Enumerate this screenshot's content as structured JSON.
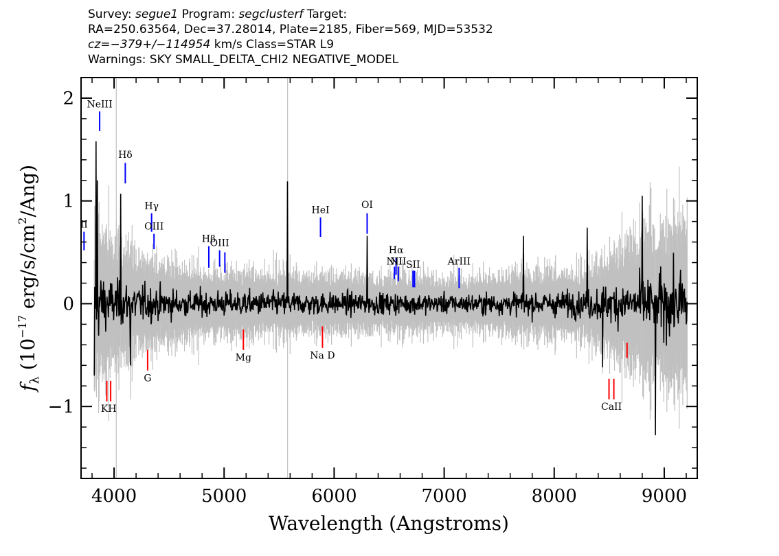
{
  "header": {
    "survey_label": "Survey: ",
    "survey": "segue1",
    "program_label": " Program: ",
    "program": "segclusterf",
    "target_label": " Target:",
    "coords": "RA=250.63564, Dec=37.28014, Plate=2185, Fiber=569, MJD=53532",
    "cz_label": "cz=",
    "cz": "−379+/−114954",
    "cz_units": " km/s  Class=STAR  L9",
    "warnings": "Warnings: SKY SMALL_DELTA_CHI2 NEGATIVE_MODEL"
  },
  "chart_data": {
    "type": "line",
    "xlabel": "Wavelength (Angstroms)",
    "ylabel_prefix": "f",
    "ylabel_sub": "λ",
    "ylabel_main": " (10",
    "ylabel_exp": "−17",
    "ylabel_rest": " erg/s/cm",
    "ylabel_exp2": "2",
    "ylabel_end": "/Ang)",
    "xlim": [
      3700,
      9300
    ],
    "ylim": [
      -1.7,
      2.2
    ],
    "x_ticks": [
      4000,
      5000,
      6000,
      7000,
      8000,
      9000
    ],
    "x_tick_labels": [
      "4000",
      "5000",
      "6000",
      "7000",
      "8000",
      "9000"
    ],
    "y_ticks": [
      -1,
      0,
      1,
      2
    ],
    "y_tick_labels": [
      "−1",
      "0",
      "1",
      "2"
    ],
    "colors": {
      "spectrum": "#000000",
      "error": "#c0c0c0",
      "emission": "#0000ff",
      "absorption": "#ff0000"
    },
    "vertical_lines": [
      4020,
      5577
    ],
    "emission_lines": [
      {
        "label": "II",
        "x": 3727,
        "y0": 0.52,
        "y1": 0.7,
        "ly": 0.74
      },
      {
        "label": "NeIII",
        "x": 3869,
        "y0": 1.68,
        "y1": 1.87,
        "ly": 1.91
      },
      {
        "label": "Hδ",
        "x": 4102,
        "y0": 1.17,
        "y1": 1.37,
        "ly": 1.42
      },
      {
        "label": "Hγ",
        "x": 4341,
        "y0": 0.7,
        "y1": 0.88,
        "ly": 0.92
      },
      {
        "label": "OIII",
        "x": 4363,
        "y0": 0.53,
        "y1": 0.68,
        "ly": 0.72
      },
      {
        "label": "Hβ",
        "x": 4861,
        "y0": 0.35,
        "y1": 0.56,
        "ly": 0.6
      },
      {
        "label": "OIII",
        "x": 4959,
        "y0": 0.36,
        "y1": 0.52,
        "ly": 0.56
      },
      {
        "label": "OIII",
        "x": 5007,
        "y0": 0.3,
        "y1": 0.5,
        "ly": 0.56
      },
      {
        "label": "HeI",
        "x": 5876,
        "y0": 0.65,
        "y1": 0.84,
        "ly": 0.88
      },
      {
        "label": "OI",
        "x": 6300,
        "y0": 0.68,
        "y1": 0.88,
        "ly": 0.93
      },
      {
        "label": "NII",
        "x": 6548,
        "y0": 0.24,
        "y1": 0.36,
        "ly": 0.38
      },
      {
        "label": "Hα",
        "x": 6563,
        "y0": 0.28,
        "y1": 0.45,
        "ly": 0.49
      },
      {
        "label": "NII",
        "x": 6583,
        "y0": 0.22,
        "y1": 0.36,
        "ly": 0.38
      },
      {
        "label": "SII",
        "x": 6717,
        "y0": 0.16,
        "y1": 0.32,
        "ly": 0.35
      },
      {
        "label": "SII",
        "x": 6731,
        "y0": 0.16,
        "y1": 0.32,
        "ly": 0.35
      },
      {
        "label": "ArIII",
        "x": 7136,
        "y0": 0.15,
        "y1": 0.35,
        "ly": 0.38
      }
    ],
    "absorption_lines": [
      {
        "label": "K",
        "x": 3934,
        "y0": -0.95,
        "y1": -0.75
      },
      {
        "label": "H",
        "x": 3969,
        "y0": -0.95,
        "y1": -0.75
      },
      {
        "label": "G",
        "x": 4305,
        "y0": -0.65,
        "y1": -0.45
      },
      {
        "label": "Mg",
        "x": 5175,
        "y0": -0.45,
        "y1": -0.25
      },
      {
        "label": "Na D",
        "x": 5894,
        "y0": -0.43,
        "y1": -0.22
      },
      {
        "label": "CaII",
        "x": 8498,
        "y0": -0.93,
        "y1": -0.73
      },
      {
        "label": "CaII",
        "x": 8542,
        "y0": -0.93,
        "y1": -0.73
      },
      {
        "label": "CaII",
        "x": 8662,
        "y0": -0.53,
        "y1": -0.38
      }
    ],
    "absorption_label_positions": [
      {
        "label": "KH",
        "x": 3951,
        "y": -0.96
      },
      {
        "label": "G",
        "x": 4305,
        "y": -0.66
      },
      {
        "label": "Mg",
        "x": 5175,
        "y": -0.46
      },
      {
        "label": "Na  D",
        "x": 5894,
        "y": -0.44
      },
      {
        "label": "CaII",
        "x": 8520,
        "y": -0.94
      }
    ],
    "spectrum_features": [
      {
        "x": 3820,
        "y": -0.7
      },
      {
        "x": 3835,
        "y": 1.58
      },
      {
        "x": 3850,
        "y": 1.2
      },
      {
        "x": 4060,
        "y": 1.07
      },
      {
        "x": 4150,
        "y": -0.6
      },
      {
        "x": 5577,
        "y": 1.19
      },
      {
        "x": 6300,
        "y": 0.66
      },
      {
        "x": 7720,
        "y": 0.66
      },
      {
        "x": 8300,
        "y": 0.74
      },
      {
        "x": 8440,
        "y": -0.62
      },
      {
        "x": 8800,
        "y": 1.05
      },
      {
        "x": 8920,
        "y": -1.28
      },
      {
        "x": 9200,
        "y": -0.2
      }
    ]
  }
}
